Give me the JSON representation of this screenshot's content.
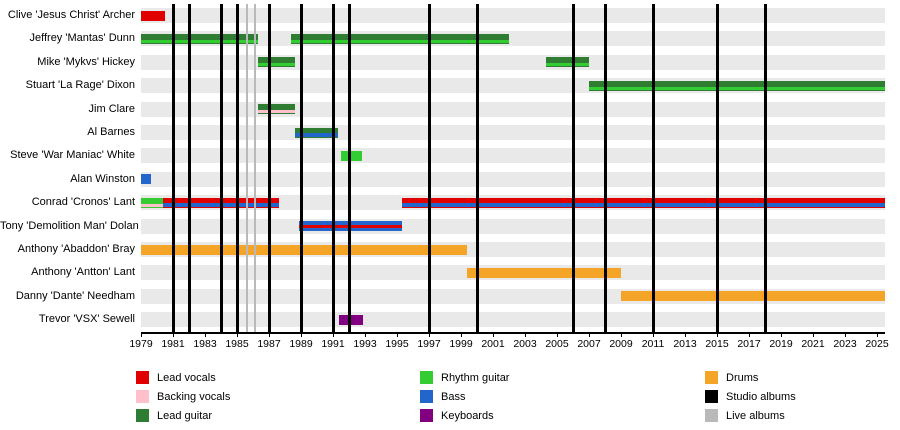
{
  "chart_data": {
    "type": "timeline",
    "title": "",
    "x_axis": {
      "start_year": 1979,
      "end_year": 2025.5,
      "tick_years": [
        1979,
        1981,
        1983,
        1985,
        1987,
        1989,
        1991,
        1993,
        1995,
        1997,
        1999,
        2001,
        2003,
        2005,
        2007,
        2009,
        2011,
        2013,
        2015,
        2017,
        2019,
        2021,
        2023,
        2025
      ]
    },
    "role_colors": {
      "lead_vocals": "#e00000",
      "backing_vocals": "#ffc0cb",
      "lead_guitar": "#2f7d32",
      "rhythm_guitar": "#33cc33",
      "bass": "#2266cc",
      "keyboards": "#800080",
      "drums": "#f4a427",
      "studio_albums": "#000000",
      "live_albums": "#b9b9b9"
    },
    "members": [
      {
        "name": "Clive 'Jesus Christ' Archer",
        "bars": [
          {
            "start": 1979,
            "end": 1980.5,
            "role": "lead_vocals"
          }
        ]
      },
      {
        "name": "Jeffrey 'Mantas' Dunn",
        "bars": [
          {
            "start": 1979,
            "end": 1986.3,
            "role": "lead_guitar",
            "stripe": "rhythm_guitar"
          },
          {
            "start": 1988.4,
            "end": 2002,
            "role": "lead_guitar",
            "stripe": "rhythm_guitar"
          }
        ]
      },
      {
        "name": "Mike 'Mykvs' Hickey",
        "bars": [
          {
            "start": 1986.3,
            "end": 1988.6,
            "role": "lead_guitar",
            "stripe": "rhythm_guitar"
          },
          {
            "start": 2004.3,
            "end": 2007,
            "role": "lead_guitar",
            "stripe": "rhythm_guitar"
          }
        ]
      },
      {
        "name": "Stuart 'La Rage' Dixon",
        "bars": [
          {
            "start": 2007,
            "end": 2025.5,
            "role": "lead_guitar",
            "stripe": "rhythm_guitar"
          }
        ]
      },
      {
        "name": "Jim Clare",
        "bars": [
          {
            "start": 1986.3,
            "end": 1988.6,
            "role": "lead_guitar",
            "stripe": "backing_vocals"
          }
        ]
      },
      {
        "name": "Al Barnes",
        "bars": [
          {
            "start": 1988.6,
            "end": 1991.3,
            "role": "lead_guitar",
            "stripe": "bass",
            "stripe_h": 4
          }
        ]
      },
      {
        "name": "Steve 'War Maniac' White",
        "bars": [
          {
            "start": 1991.5,
            "end": 1992.8,
            "role": "rhythm_guitar"
          }
        ]
      },
      {
        "name": "Alan Winston",
        "bars": [
          {
            "start": 1979,
            "end": 1979.6,
            "role": "bass"
          }
        ]
      },
      {
        "name": "Conrad 'Cronos' Lant",
        "bars": [
          {
            "start": 1979,
            "end": 1980.4,
            "role": "rhythm_guitar",
            "stripe": "backing_vocals"
          },
          {
            "start": 1980.4,
            "end": 1987.6,
            "role": "lead_vocals",
            "stripe": "bass",
            "stripe_h": 4
          },
          {
            "start": 1995.3,
            "end": 2025.5,
            "role": "lead_vocals",
            "stripe": "bass",
            "stripe_h": 4
          }
        ]
      },
      {
        "name": "Tony 'Demolition Man' Dolan",
        "bars": [
          {
            "start": 1988.9,
            "end": 1995.3,
            "role": "bass",
            "stripe": "lead_vocals",
            "stripe_pos": "center"
          }
        ]
      },
      {
        "name": "Anthony 'Abaddon' Bray",
        "bars": [
          {
            "start": 1979,
            "end": 1999.4,
            "role": "drums"
          }
        ]
      },
      {
        "name": "Anthony 'Antton' Lant",
        "bars": [
          {
            "start": 1999.4,
            "end": 2009,
            "role": "drums"
          }
        ]
      },
      {
        "name": "Danny 'Dante' Needham",
        "bars": [
          {
            "start": 2009,
            "end": 2025.5,
            "role": "drums"
          }
        ]
      },
      {
        "name": "Trevor 'VSX' Sewell",
        "bars": [
          {
            "start": 1991.4,
            "end": 1992.9,
            "role": "keyboards"
          }
        ]
      }
    ],
    "albums": {
      "studio_years": [
        1981,
        1982,
        1984,
        1985,
        1987,
        1989,
        1991,
        1992,
        1997,
        2000,
        2006,
        2008,
        2011,
        2015,
        2018
      ],
      "live_years": [
        1985.6,
        1986.1
      ]
    },
    "legend": {
      "columns": [
        [
          {
            "label": "Lead vocals",
            "key": "lead_vocals"
          },
          {
            "label": "Backing vocals",
            "key": "backing_vocals"
          },
          {
            "label": "Lead guitar",
            "key": "lead_guitar"
          }
        ],
        [
          {
            "label": "Rhythm guitar",
            "key": "rhythm_guitar"
          },
          {
            "label": "Bass",
            "key": "bass"
          },
          {
            "label": "Keyboards",
            "key": "keyboards"
          }
        ],
        [
          {
            "label": "Drums",
            "key": "drums"
          },
          {
            "label": "Studio albums",
            "key": "studio_albums"
          },
          {
            "label": "Live albums",
            "key": "live_albums"
          }
        ]
      ]
    },
    "style": {
      "row_stripe_color": "#e9e9e9",
      "background": "#ffffff"
    }
  }
}
